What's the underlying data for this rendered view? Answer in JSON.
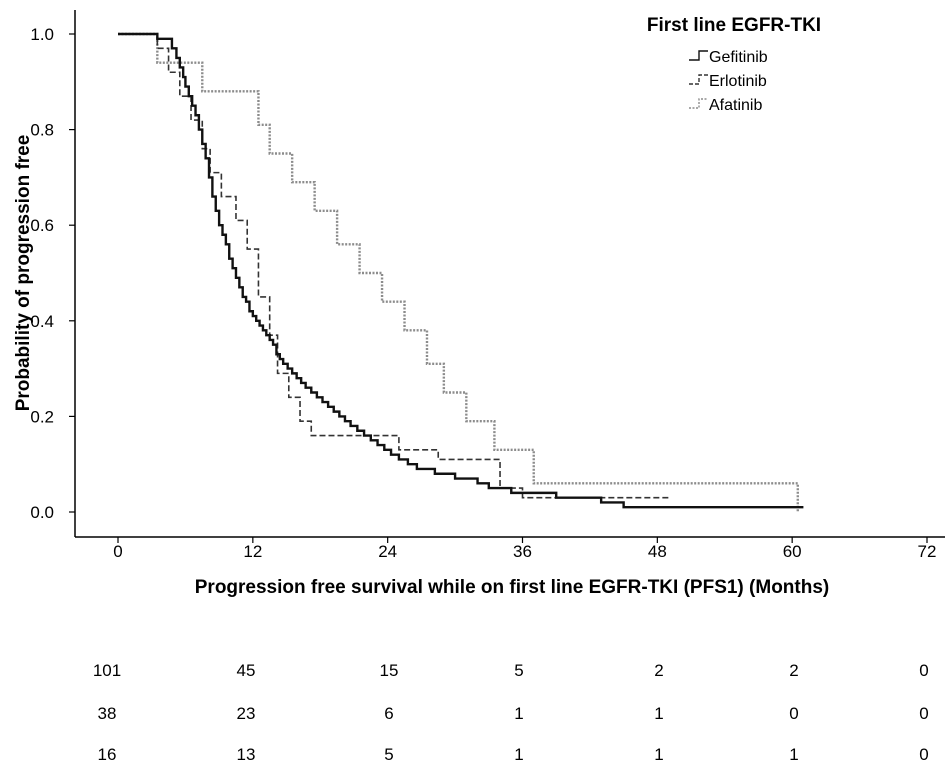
{
  "chart_data": {
    "type": "line",
    "subtype": "kaplan-meier step",
    "xlabel": "Progression free survival while on first line EGFR-TKI (PFS1) (Months)",
    "ylabel": "Probability of progression free",
    "xlim": [
      0,
      72
    ],
    "ylim": [
      0,
      1.0
    ],
    "x_ticks": [
      "0",
      "12",
      "24",
      "36",
      "48",
      "60",
      "72"
    ],
    "x_tick_values": [
      0,
      12,
      24,
      36,
      48,
      60,
      72
    ],
    "y_ticks": [
      "0.0",
      "0.2",
      "0.4",
      "0.6",
      "0.8",
      "1.0"
    ],
    "y_tick_values": [
      0,
      0.2,
      0.4,
      0.6,
      0.8,
      1.0
    ],
    "grid": false,
    "legend": {
      "title": "First line EGFR-TKI",
      "placement": "top-right",
      "entries": [
        "Gefitinib",
        "Erlotinib",
        "Afatinib"
      ]
    },
    "series": [
      {
        "name": "Gefitinib",
        "style": "solid",
        "color": "#111111",
        "x": [
          0,
          3.5,
          4.8,
          5.2,
          5.5,
          5.8,
          6.0,
          6.3,
          6.6,
          6.9,
          7.2,
          7.5,
          7.8,
          8.1,
          8.4,
          8.7,
          9.0,
          9.3,
          9.6,
          9.9,
          10.2,
          10.5,
          10.8,
          11.1,
          11.4,
          11.7,
          12.0,
          12.3,
          12.6,
          12.9,
          13.2,
          13.5,
          13.8,
          14.1,
          14.4,
          14.7,
          15.1,
          15.5,
          15.9,
          16.3,
          16.7,
          17.2,
          17.7,
          18.2,
          18.7,
          19.2,
          19.7,
          20.2,
          20.7,
          21.3,
          21.9,
          22.5,
          23.1,
          23.7,
          24.3,
          25.0,
          25.8,
          26.6,
          27.4,
          28.2,
          29.0,
          30.0,
          31.0,
          32.0,
          33.0,
          34.0,
          35.0,
          37.0,
          39.0,
          41.0,
          43.0,
          45.0,
          55.0,
          61.0
        ],
        "y": [
          1.0,
          0.99,
          0.97,
          0.95,
          0.93,
          0.91,
          0.89,
          0.87,
          0.85,
          0.83,
          0.8,
          0.77,
          0.74,
          0.7,
          0.66,
          0.63,
          0.6,
          0.58,
          0.56,
          0.53,
          0.51,
          0.49,
          0.47,
          0.45,
          0.44,
          0.42,
          0.41,
          0.4,
          0.39,
          0.38,
          0.37,
          0.36,
          0.35,
          0.33,
          0.32,
          0.31,
          0.3,
          0.29,
          0.28,
          0.27,
          0.26,
          0.25,
          0.24,
          0.23,
          0.22,
          0.21,
          0.2,
          0.19,
          0.18,
          0.17,
          0.16,
          0.15,
          0.14,
          0.13,
          0.12,
          0.11,
          0.1,
          0.09,
          0.09,
          0.08,
          0.08,
          0.07,
          0.07,
          0.06,
          0.05,
          0.05,
          0.04,
          0.04,
          0.03,
          0.03,
          0.02,
          0.01,
          0.01,
          0.01
        ]
      },
      {
        "name": "Erlotinib",
        "style": "dashed",
        "color": "#333333",
        "x": [
          0,
          3.5,
          4.5,
          5.5,
          6.5,
          7.5,
          8.2,
          9.2,
          10.5,
          11.5,
          12.5,
          13.5,
          14.2,
          15.2,
          16.2,
          17.2,
          18.5,
          25.0,
          28.5,
          34.0,
          36.0,
          39.0,
          43.0,
          46.0,
          49.0
        ],
        "y": [
          1.0,
          0.97,
          0.92,
          0.87,
          0.82,
          0.76,
          0.71,
          0.66,
          0.61,
          0.55,
          0.45,
          0.37,
          0.29,
          0.24,
          0.19,
          0.16,
          0.16,
          0.13,
          0.11,
          0.05,
          0.03,
          0.03,
          0.03,
          0.03,
          0.03
        ]
      },
      {
        "name": "Afatinib",
        "style": "dotted",
        "color": "#8c8c8c",
        "x": [
          0,
          3.5,
          5.5,
          7.5,
          9.5,
          12.5,
          13.5,
          15.5,
          17.5,
          19.5,
          21.5,
          23.5,
          25.5,
          27.5,
          29.0,
          31.0,
          33.5,
          37.0,
          50.0,
          59.5,
          60.5
        ],
        "y": [
          1.0,
          0.94,
          0.94,
          0.88,
          0.88,
          0.81,
          0.75,
          0.69,
          0.63,
          0.56,
          0.5,
          0.44,
          0.38,
          0.31,
          0.25,
          0.19,
          0.13,
          0.06,
          0.06,
          0.06,
          0.0
        ]
      }
    ]
  },
  "risk_table": {
    "rows": [
      [
        "101",
        "45",
        "15",
        "5",
        "2",
        "2",
        "0"
      ],
      [
        "38",
        "23",
        "6",
        "1",
        "1",
        "0",
        "0"
      ],
      [
        "16",
        "13",
        "5",
        "1",
        "1",
        "1",
        "0"
      ]
    ]
  }
}
